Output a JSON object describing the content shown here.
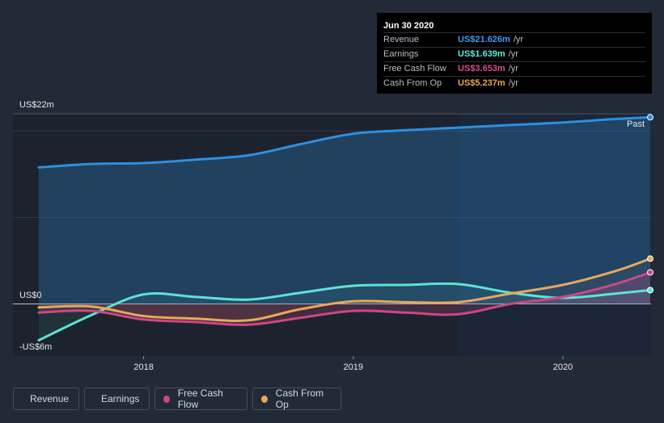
{
  "tooltip": {
    "date": "Jun 30 2020",
    "rows": [
      {
        "label": "Revenue",
        "value": "US$21.626m",
        "unit": "/yr",
        "color": "#3d9cf0"
      },
      {
        "label": "Earnings",
        "value": "US$1.639m",
        "unit": "/yr",
        "color": "#67e8d8"
      },
      {
        "label": "Free Cash Flow",
        "value": "US$3.653m",
        "unit": "/yr",
        "color": "#d64f8f"
      },
      {
        "label": "Cash From Op",
        "value": "US$5.237m",
        "unit": "/yr",
        "color": "#e9a855"
      }
    ]
  },
  "past_label": "Past",
  "legend": [
    {
      "label": "Revenue",
      "color": "#2e8fe0"
    },
    {
      "label": "Earnings",
      "color": "#5ee3d3"
    },
    {
      "label": "Free Cash Flow",
      "color": "#cc4787"
    },
    {
      "label": "Cash From Op",
      "color": "#e8a85a"
    }
  ],
  "chart_data": {
    "type": "line",
    "ylim": [
      -6,
      22
    ],
    "y_tick_labels": [
      {
        "value": 22,
        "label": "US$22m"
      },
      {
        "value": 0,
        "label": "US$0"
      },
      {
        "value": -6,
        "label": "-US$6m"
      }
    ],
    "x_tick_labels": [
      "2018",
      "2019",
      "2020"
    ],
    "x_range": [
      "2017-07",
      "2020-06"
    ],
    "forecast_start": "2019-07",
    "series": [
      {
        "name": "Revenue",
        "color": "#2e8fe0",
        "points": [
          [
            "2017-07",
            15.8
          ],
          [
            "2017-10",
            16.2
          ],
          [
            "2018-01",
            16.3
          ],
          [
            "2018-04",
            16.7
          ],
          [
            "2018-07",
            17.2
          ],
          [
            "2018-10",
            18.5
          ],
          [
            "2019-01",
            19.7
          ],
          [
            "2019-04",
            20.1
          ],
          [
            "2019-07",
            20.4
          ],
          [
            "2019-10",
            20.7
          ],
          [
            "2020-01",
            21.0
          ],
          [
            "2020-04",
            21.4
          ],
          [
            "2020-06",
            21.6
          ]
        ]
      },
      {
        "name": "Earnings",
        "color": "#5ee3d3",
        "points": [
          [
            "2017-07",
            -4.2
          ],
          [
            "2017-10",
            -1.3
          ],
          [
            "2018-01",
            1.1
          ],
          [
            "2018-04",
            0.8
          ],
          [
            "2018-07",
            0.5
          ],
          [
            "2018-10",
            1.3
          ],
          [
            "2019-01",
            2.1
          ],
          [
            "2019-04",
            2.2
          ],
          [
            "2019-07",
            2.3
          ],
          [
            "2019-10",
            1.3
          ],
          [
            "2020-01",
            0.7
          ],
          [
            "2020-04",
            1.2
          ],
          [
            "2020-06",
            1.6
          ]
        ]
      },
      {
        "name": "Free Cash Flow",
        "color": "#cc4787",
        "points": [
          [
            "2017-07",
            -1.0
          ],
          [
            "2017-10",
            -0.8
          ],
          [
            "2018-01",
            -1.8
          ],
          [
            "2018-04",
            -2.1
          ],
          [
            "2018-07",
            -2.4
          ],
          [
            "2018-10",
            -1.6
          ],
          [
            "2019-01",
            -0.8
          ],
          [
            "2019-04",
            -1.0
          ],
          [
            "2019-07",
            -1.2
          ],
          [
            "2019-10",
            0.0
          ],
          [
            "2020-01",
            0.8
          ],
          [
            "2020-04",
            2.3
          ],
          [
            "2020-06",
            3.65
          ]
        ]
      },
      {
        "name": "Cash From Op",
        "color": "#e8a85a",
        "points": [
          [
            "2017-07",
            -0.4
          ],
          [
            "2017-10",
            -0.3
          ],
          [
            "2018-01",
            -1.4
          ],
          [
            "2018-04",
            -1.7
          ],
          [
            "2018-07",
            -1.9
          ],
          [
            "2018-10",
            -0.6
          ],
          [
            "2019-01",
            0.3
          ],
          [
            "2019-04",
            0.2
          ],
          [
            "2019-07",
            0.2
          ],
          [
            "2019-10",
            1.2
          ],
          [
            "2020-01",
            2.2
          ],
          [
            "2020-04",
            3.8
          ],
          [
            "2020-06",
            5.24
          ]
        ]
      }
    ]
  }
}
